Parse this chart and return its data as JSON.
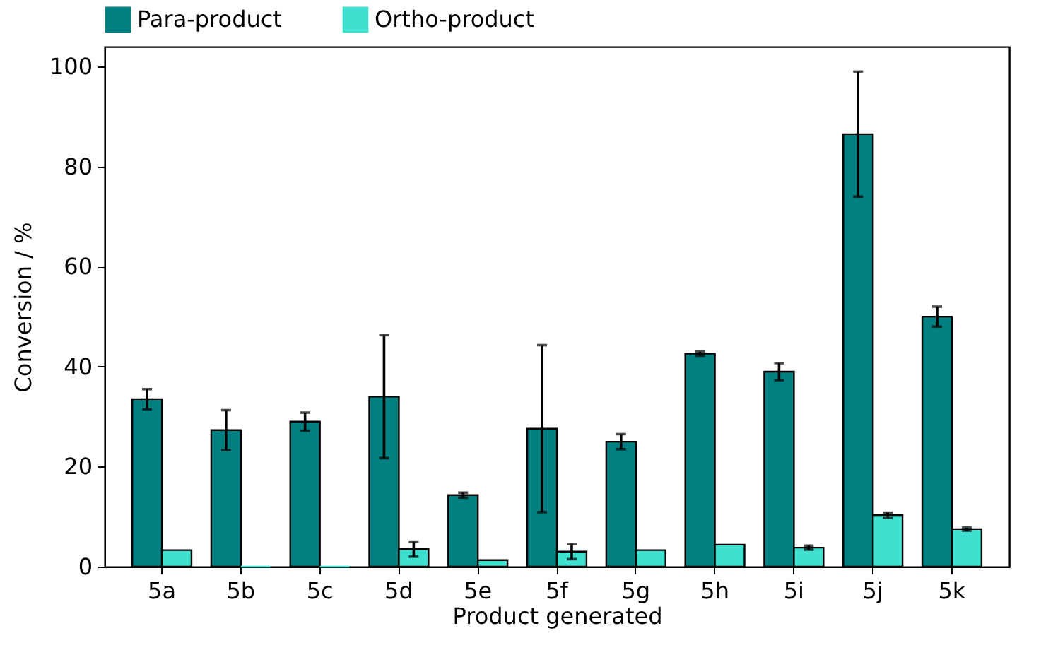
{
  "chart_data": {
    "type": "bar",
    "xlabel": "Product generated",
    "ylabel": "Conversion / %",
    "categories": [
      "5a",
      "5b",
      "5c",
      "5d",
      "5e",
      "5f",
      "5g",
      "5h",
      "5i",
      "5j",
      "5k"
    ],
    "series": [
      {
        "name": "Para-product",
        "color": "#008080",
        "values": [
          33.5,
          27.3,
          29,
          34,
          14.3,
          27.6,
          25,
          42.6,
          39,
          86.5,
          50
        ],
        "errors": [
          2,
          4,
          1.8,
          12.3,
          0.5,
          16.7,
          1.5,
          0.4,
          1.7,
          12.5,
          2
        ]
      },
      {
        "name": "Ortho-product",
        "color": "#40e0d0",
        "values": [
          3.3,
          0,
          0,
          3.5,
          1.3,
          3,
          3.3,
          4.4,
          3.8,
          10.3,
          7.5
        ],
        "errors": [
          null,
          null,
          null,
          1.5,
          null,
          1.5,
          null,
          null,
          0.4,
          0.5,
          0.3
        ]
      }
    ],
    "ylim": [
      0,
      104
    ],
    "yticks": [
      0,
      20,
      40,
      60,
      80,
      100
    ],
    "grid": false,
    "legend": "top"
  }
}
